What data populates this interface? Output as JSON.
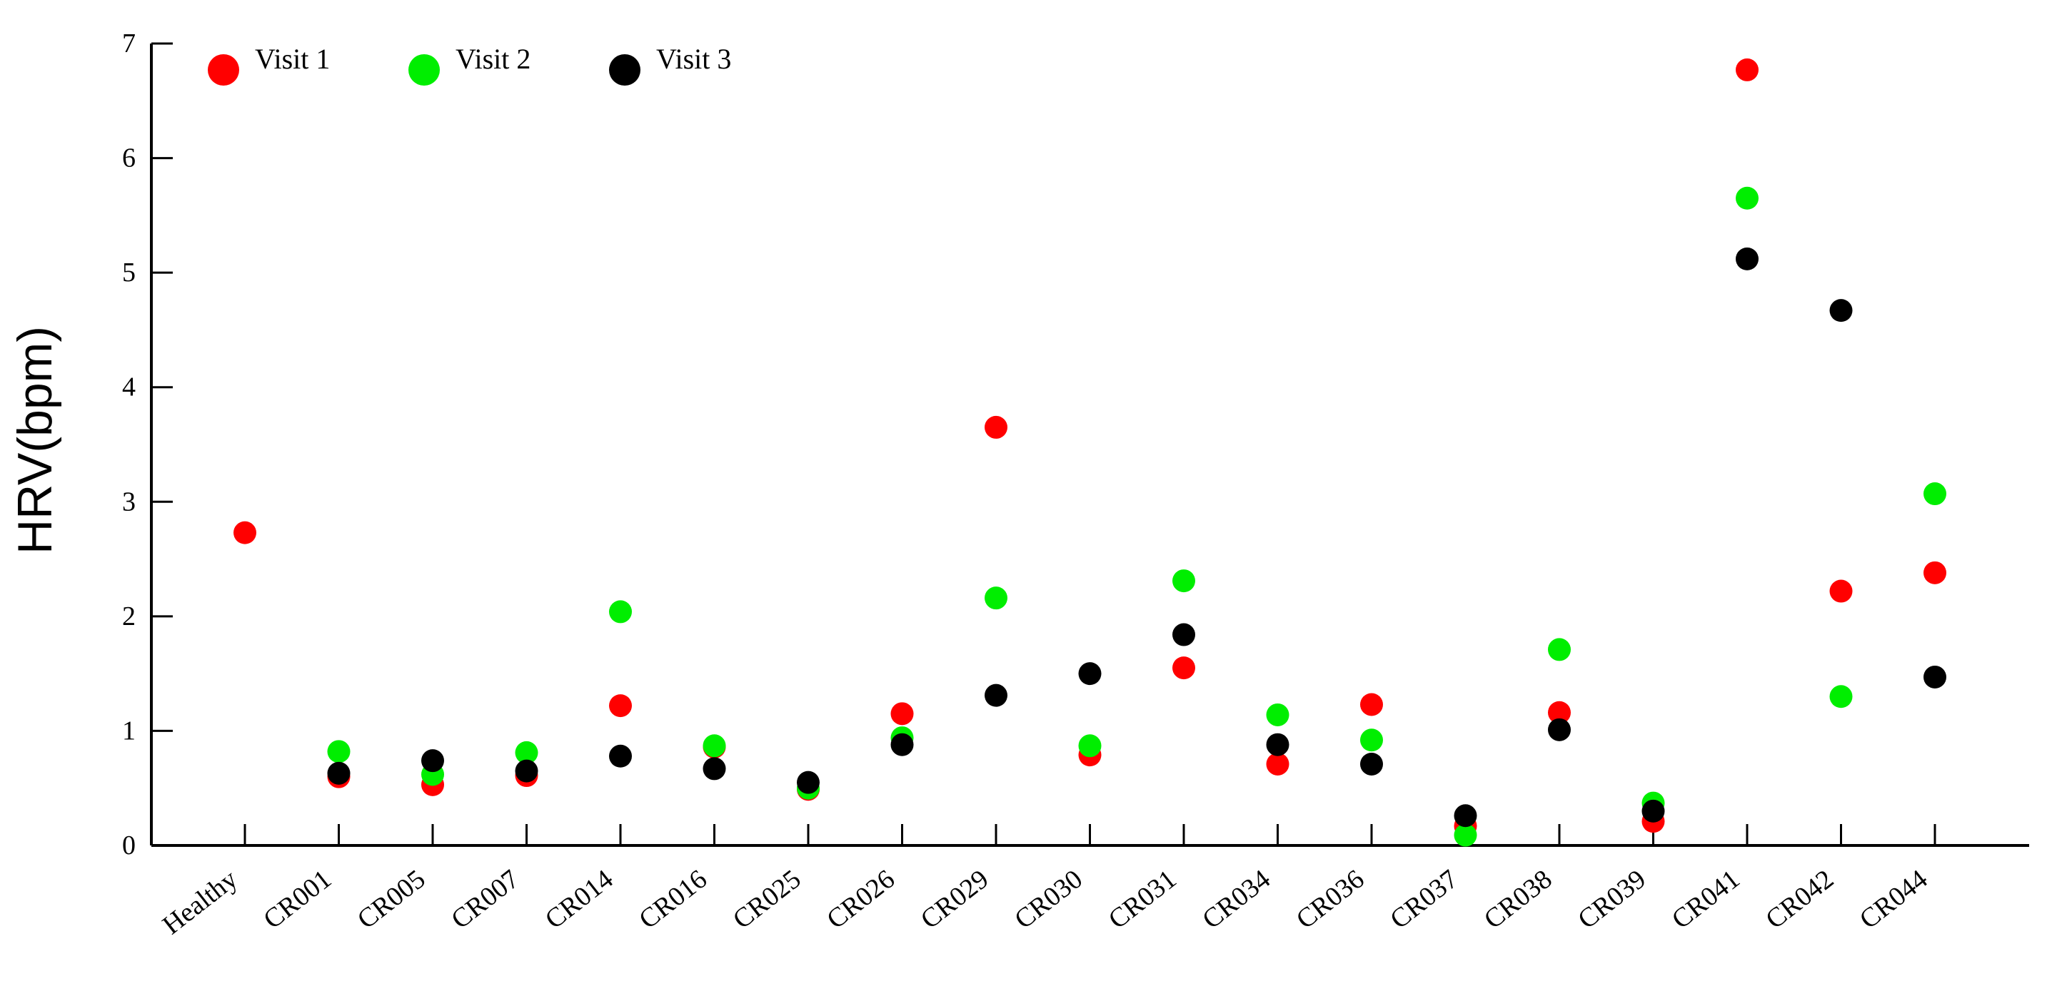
{
  "chart_data": {
    "type": "scatter",
    "title": "",
    "xlabel": "",
    "ylabel": "HRV(bpm)",
    "ylim": [
      0,
      7
    ],
    "yticks": [
      0,
      1,
      2,
      3,
      4,
      5,
      6,
      7
    ],
    "grid": false,
    "legend_position": "top-left",
    "categories": [
      "Healthy",
      "CR001",
      "CR005",
      "CR007",
      "CR014",
      "CR016",
      "CR025",
      "CR026",
      "CR029",
      "CR030",
      "CR031",
      "CR034",
      "CR036",
      "CR037",
      "CR038",
      "CR039",
      "CR041",
      "CR042",
      "CR044"
    ],
    "series": [
      {
        "name": "Visit 1",
        "color": "#ff0000",
        "values": [
          2.73,
          0.6,
          0.53,
          0.61,
          1.22,
          0.86,
          0.49,
          1.15,
          3.65,
          0.79,
          1.55,
          0.71,
          1.23,
          0.17,
          1.16,
          0.21,
          6.77,
          2.22,
          2.38
        ]
      },
      {
        "name": "Visit 2",
        "color": "#00ee00",
        "values": [
          null,
          0.82,
          0.62,
          0.81,
          2.04,
          0.87,
          0.5,
          0.94,
          2.16,
          0.87,
          2.31,
          1.14,
          0.92,
          0.09,
          1.71,
          0.37,
          5.65,
          1.3,
          3.07
        ]
      },
      {
        "name": "Visit 3",
        "color": "#000000",
        "values": [
          null,
          0.63,
          0.74,
          0.65,
          0.78,
          0.67,
          0.55,
          0.88,
          1.31,
          1.5,
          1.84,
          0.88,
          0.71,
          0.26,
          1.01,
          0.3,
          5.12,
          4.67,
          1.47
        ]
      }
    ]
  }
}
